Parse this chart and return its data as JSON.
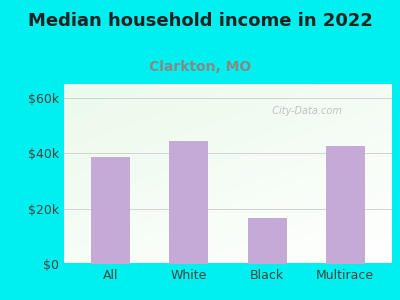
{
  "title": "Median household income in 2022",
  "subtitle": "Clarkton, MO",
  "categories": [
    "All",
    "White",
    "Black",
    "Multirace"
  ],
  "values": [
    38500,
    44500,
    16500,
    42500
  ],
  "bar_color": "#c5aad8",
  "title_fontsize": 13,
  "subtitle_fontsize": 10,
  "subtitle_color": "#888888",
  "tick_label_fontsize": 9,
  "ytick_labels": [
    "$0",
    "$20k",
    "$40k",
    "$60k"
  ],
  "ytick_values": [
    0,
    20000,
    40000,
    60000
  ],
  "ylim": [
    0,
    65000
  ],
  "background_outer": "#00efef",
  "watermark": "  City-Data.com",
  "title_color": "#222222",
  "axis_label_color": "#444444"
}
